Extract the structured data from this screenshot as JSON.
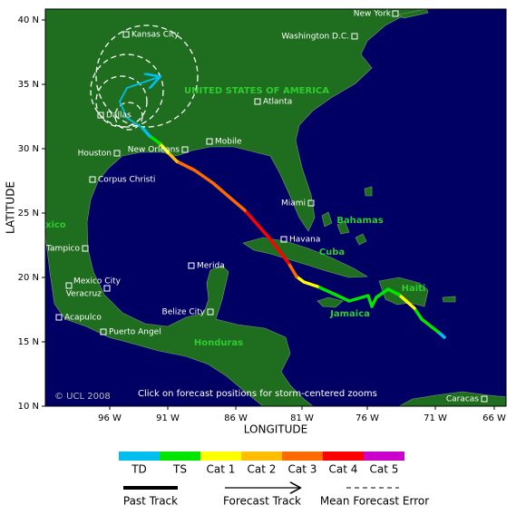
{
  "axes": {
    "y_label": "LATITUDE",
    "x_label": "LONGITUDE",
    "y_ticks": [
      "40 N",
      "35 N",
      "30 N",
      "25 N",
      "20 N",
      "15 N",
      "10 N"
    ],
    "x_ticks": [
      "96 W",
      "91 W",
      "86 W",
      "81 W",
      "76 W",
      "71 W",
      "66 W"
    ]
  },
  "cities": [
    "New York",
    "Kansas City",
    "Washington D.C.",
    "Atlanta",
    "Dallas",
    "Houston",
    "New Orleans",
    "Mobile",
    "Corpus Christi",
    "Miami",
    "Tampico",
    "Havana",
    "Mexico City",
    "Merida",
    "Veracruz",
    "Belize City",
    "Acapulco",
    "Puerto Angel",
    "Caracas"
  ],
  "countries": [
    "UNITED STATES OF AMERICA",
    "Bahamas",
    "Cuba",
    "Haiti",
    "Jamaica",
    "Honduras",
    "xico"
  ],
  "notes": {
    "copyright": "© UCL 2008",
    "instruction": "Click on forecast positions for storm-centered zooms"
  },
  "legend": {
    "categories": [
      {
        "label": "TD",
        "color": "#00bfef"
      },
      {
        "label": "TS",
        "color": "#00e600"
      },
      {
        "label": "Cat 1",
        "color": "#ffff00"
      },
      {
        "label": "Cat 2",
        "color": "#ffbf00"
      },
      {
        "label": "Cat 3",
        "color": "#ff6a00"
      },
      {
        "label": "Cat 4",
        "color": "#ff0000"
      },
      {
        "label": "Cat 5",
        "color": "#cc00cc"
      }
    ],
    "past_track": "Past Track",
    "forecast_track": "Forecast Track",
    "mean_error": "Mean Forecast Error"
  }
}
